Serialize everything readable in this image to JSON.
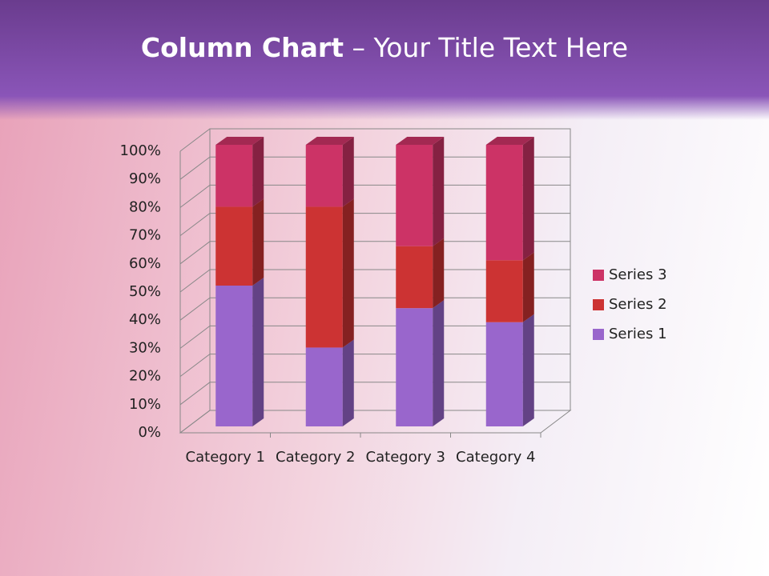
{
  "chart_data": {
    "type": "stacked_bar_3d",
    "title": "Column Chart",
    "subtitle": "– Your Title Text Here",
    "categories": [
      "Category 1",
      "Category 2",
      "Category 3",
      "Category 4"
    ],
    "series": [
      {
        "name": "Series 1",
        "color": "#9966cc",
        "values": [
          50,
          28,
          42,
          37
        ]
      },
      {
        "name": "Series 2",
        "color": "#cc3333",
        "values": [
          28,
          50,
          22,
          22
        ]
      },
      {
        "name": "Series 3",
        "color": "#cc3366",
        "values": [
          22,
          22,
          36,
          41
        ]
      }
    ],
    "ylim": [
      0,
      100
    ],
    "yticks": [
      {
        "value": 0,
        "label": "0%"
      },
      {
        "value": 10,
        "label": "10%"
      },
      {
        "value": 20,
        "label": "20%"
      },
      {
        "value": 30,
        "label": "30%"
      },
      {
        "value": 40,
        "label": "40%"
      },
      {
        "value": 50,
        "label": "50%"
      },
      {
        "value": 60,
        "label": "60%"
      },
      {
        "value": 70,
        "label": "70%"
      },
      {
        "value": 80,
        "label": "80%"
      },
      {
        "value": 90,
        "label": "90%"
      },
      {
        "value": 100,
        "label": "100%"
      }
    ],
    "grid": true,
    "legend": "right"
  }
}
